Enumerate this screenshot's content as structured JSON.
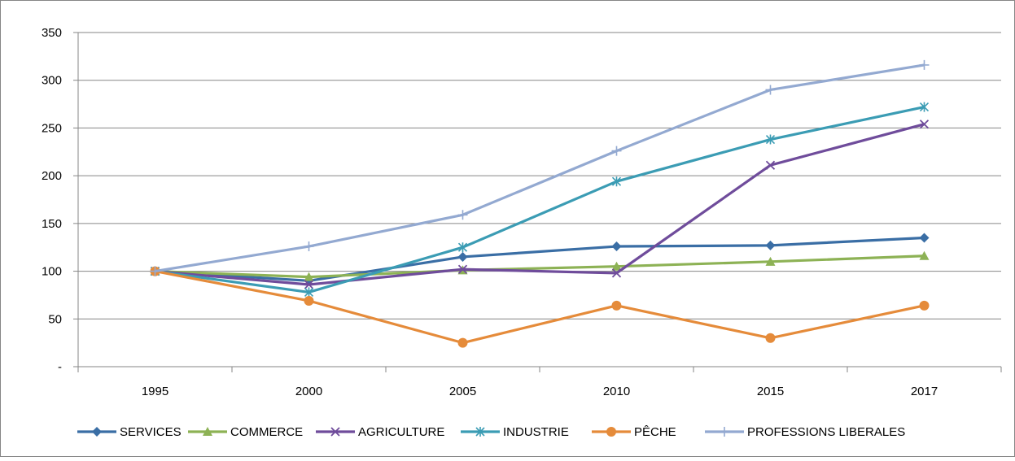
{
  "chart_data": {
    "type": "line",
    "title": "",
    "xlabel": "",
    "ylabel": "",
    "categories": [
      "1995",
      "2000",
      "2005",
      "2010",
      "2015",
      "2017"
    ],
    "y_tick_labels": [
      "-",
      "50",
      "100",
      "150",
      "200",
      "250",
      "300",
      "350"
    ],
    "ylim": [
      0,
      350
    ],
    "grid": "horizontal",
    "legend_position": "bottom",
    "series": [
      {
        "name": "SERVICES",
        "color": "#3A6EA5",
        "marker": "diamond",
        "values": [
          100,
          90,
          115,
          126,
          127,
          135
        ]
      },
      {
        "name": "COMMERCE",
        "color": "#8DB255",
        "marker": "triangle",
        "values": [
          100,
          94,
          101,
          105,
          110,
          116
        ]
      },
      {
        "name": "AGRICULTURE",
        "color": "#6F4C9B",
        "marker": "x",
        "values": [
          100,
          86,
          102,
          98,
          211,
          254
        ]
      },
      {
        "name": "INDUSTRIE",
        "color": "#3B9CB4",
        "marker": "asterisk",
        "values": [
          100,
          78,
          125,
          194,
          238,
          272
        ]
      },
      {
        "name": "PÊCHE",
        "color": "#E58B3A",
        "marker": "circle",
        "values": [
          100,
          69,
          25,
          64,
          30,
          64
        ]
      },
      {
        "name": "PROFESSIONS LIBERALES",
        "color": "#93A9D1",
        "marker": "plus",
        "values": [
          100,
          126,
          159,
          226,
          290,
          316
        ]
      }
    ]
  }
}
